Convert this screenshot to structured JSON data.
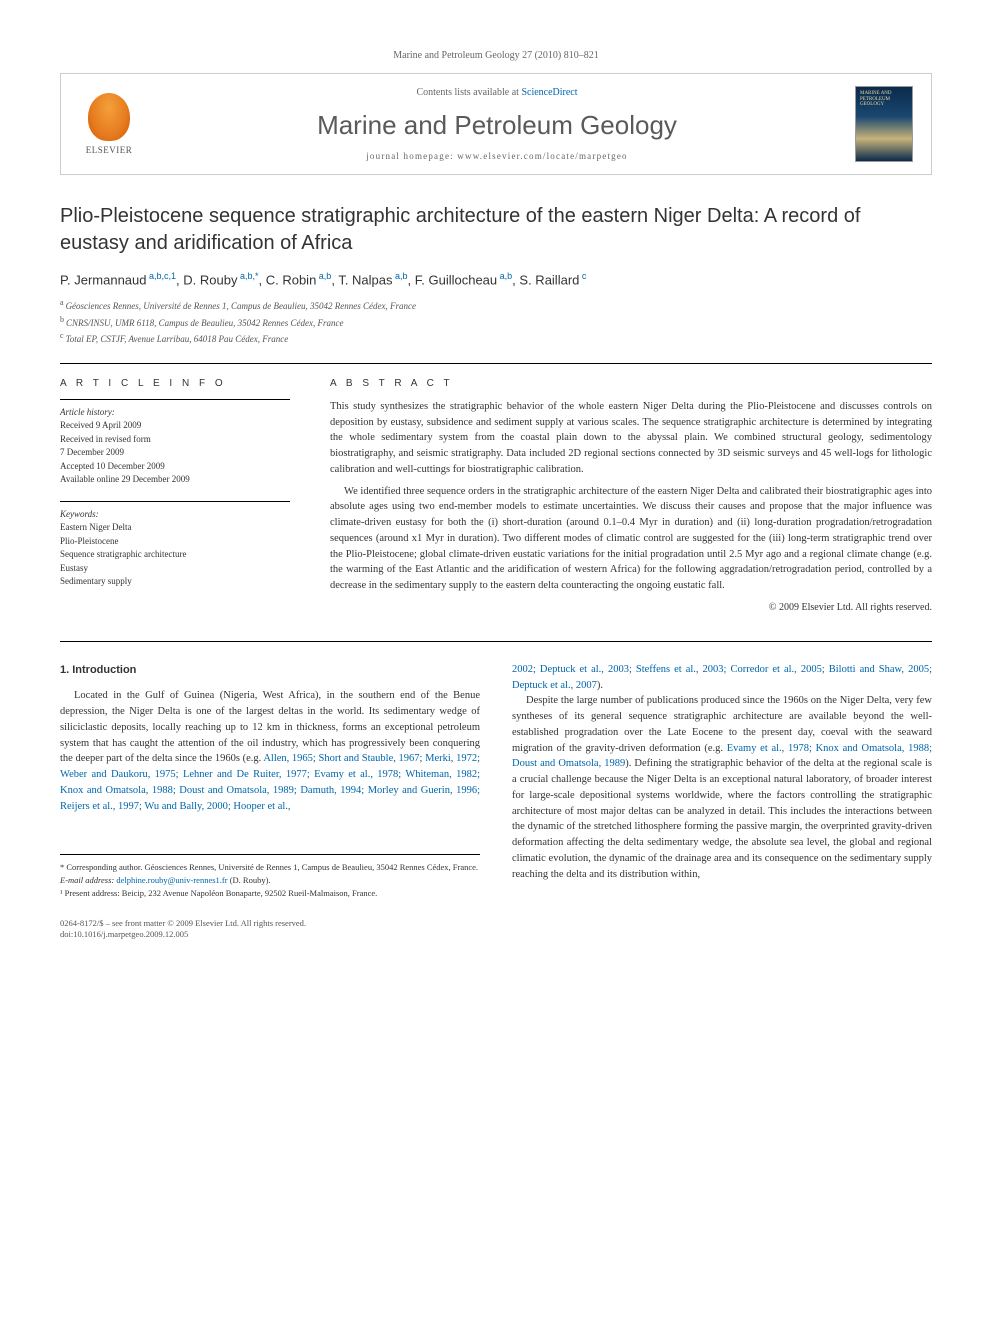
{
  "citation": "Marine and Petroleum Geology 27 (2010) 810–821",
  "header": {
    "contentsPrefix": "Contents lists available at ",
    "scienceDirect": "ScienceDirect",
    "journalName": "Marine and Petroleum Geology",
    "homepagePrefix": "journal homepage: ",
    "homepageUrl": "www.elsevier.com/locate/marpetgeo",
    "publisher": "ELSEVIER",
    "coverLine1": "MARINE AND",
    "coverLine2": "PETROLEUM",
    "coverLine3": "GEOLOGY"
  },
  "title": "Plio-Pleistocene sequence stratigraphic architecture of the eastern Niger Delta: A record of eustasy and aridification of Africa",
  "authors": [
    {
      "name": "P. Jermannaud",
      "marks": "a,b,c,1"
    },
    {
      "name": "D. Rouby",
      "marks": "a,b,*"
    },
    {
      "name": "C. Robin",
      "marks": "a,b"
    },
    {
      "name": "T. Nalpas",
      "marks": "a,b"
    },
    {
      "name": "F. Guillocheau",
      "marks": "a,b"
    },
    {
      "name": "S. Raillard",
      "marks": "c"
    }
  ],
  "affiliations": [
    {
      "mark": "a",
      "text": "Géosciences Rennes, Université de Rennes 1, Campus de Beaulieu, 35042 Rennes Cédex, France"
    },
    {
      "mark": "b",
      "text": "CNRS/INSU, UMR 6118, Campus de Beaulieu, 35042 Rennes Cédex, France"
    },
    {
      "mark": "c",
      "text": "Total EP, CSTJF, Avenue Larribau, 64018 Pau Cédex, France"
    }
  ],
  "articleInfo": {
    "label": "A R T I C L E   I N F O",
    "historyHeading": "Article history:",
    "history": [
      "Received 9 April 2009",
      "Received in revised form",
      "7 December 2009",
      "Accepted 10 December 2009",
      "Available online 29 December 2009"
    ],
    "keywordsHeading": "Keywords:",
    "keywords": [
      "Eastern Niger Delta",
      "Plio-Pleistocene",
      "Sequence stratigraphic architecture",
      "Eustasy",
      "Sedimentary supply"
    ]
  },
  "abstract": {
    "label": "A B S T R A C T",
    "paragraphs": [
      "This study synthesizes the stratigraphic behavior of the whole eastern Niger Delta during the Plio-Pleistocene and discusses controls on deposition by eustasy, subsidence and sediment supply at various scales. The sequence stratigraphic architecture is determined by integrating the whole sedimentary system from the coastal plain down to the abyssal plain. We combined structural geology, sedimentology biostratigraphy, and seismic stratigraphy. Data included 2D regional sections connected by 3D seismic surveys and 45 well-logs for lithologic calibration and well-cuttings for biostratigraphic calibration.",
      "We identified three sequence orders in the stratigraphic architecture of the eastern Niger Delta and calibrated their biostratigraphic ages into absolute ages using two end-member models to estimate uncertainties. We discuss their causes and propose that the major influence was climate-driven eustasy for both the (i) short-duration (around 0.1–0.4 Myr in duration) and (ii) long-duration progradation/retrogradation sequences (around x1 Myr in duration). Two different modes of climatic control are suggested for the (iii) long-term stratigraphic trend over the Plio-Pleistocene; global climate-driven eustatic variations for the initial progradation until 2.5 Myr ago and a regional climate change (e.g. the warming of the East Atlantic and the aridification of western Africa) for the following aggradation/retrogradation period, controlled by a decrease in the sedimentary supply to the eastern delta counteracting the ongoing eustatic fall."
    ],
    "copyright": "© 2009 Elsevier Ltd. All rights reserved."
  },
  "bodyHeading": "1. Introduction",
  "bodyLeft": "Located in the Gulf of Guinea (Nigeria, West Africa), in the southern end of the Benue depression, the Niger Delta is one of the largest deltas in the world. Its sedimentary wedge of siliciclastic deposits, locally reaching up to 12 km in thickness, forms an exceptional petroleum system that has caught the attention of the oil industry, which has progressively been conquering the deeper part of the delta since the 1960s (e.g. ",
  "bodyLeftRefs": "Allen, 1965; Short and Stauble, 1967; Merki, 1972; Weber and Daukoru, 1975; Lehner and De Ruiter, 1977; Evamy et al., 1978; Whiteman, 1982; Knox and Omatsola, 1988; Doust and Omatsola, 1989; Damuth, 1994; Morley and Guerin, 1996; Reijers et al., 1997; Wu and Bally, 2000; Hooper et al.,",
  "bodyRightRefs": "2002; Deptuck et al., 2003; Steffens et al., 2003; Corredor et al., 2005; Bilotti and Shaw, 2005; Deptuck et al., 2007",
  "bodyRightRefsClose": ").",
  "bodyRight": "Despite the large number of publications produced since the 1960s on the Niger Delta, very few syntheses of its general sequence stratigraphic architecture are available beyond the well-established progradation over the Late Eocene to the present day, coeval with the seaward migration of the gravity-driven deformation (e.g. ",
  "bodyRightRefs2": "Evamy et al., 1978; Knox and Omatsola, 1988; Doust and Omatsola, 1989",
  "bodyRight2": "). Defining the stratigraphic behavior of the delta at the regional scale is a crucial challenge because the Niger Delta is an exceptional natural laboratory, of broader interest for large-scale depositional systems worldwide, where the factors controlling the stratigraphic architecture of most major deltas can be analyzed in detail. This includes the interactions between the dynamic of the stretched lithosphere forming the passive margin, the overprinted gravity-driven deformation affecting the delta sedimentary wedge, the absolute sea level, the global and regional climatic evolution, the dynamic of the drainage area and its consequence on the sedimentary supply reaching the delta and its distribution within,",
  "footnotes": {
    "corresponding": "* Corresponding author. Géosciences Rennes, Université de Rennes 1, Campus de Beaulieu, 35042 Rennes Cédex, France.",
    "emailLabel": "E-mail address: ",
    "email": "delphine.rouby@univ-rennes1.fr",
    "emailSuffix": " (D. Rouby).",
    "present": "¹ Present address: Beicip, 232 Avenue Napoléon Bonaparte, 92502 Rueil-Malmaison, France."
  },
  "bottom": {
    "line1": "0264-8172/$ – see front matter © 2009 Elsevier Ltd. All rights reserved.",
    "line2": "doi:10.1016/j.marpetgeo.2009.12.005"
  }
}
